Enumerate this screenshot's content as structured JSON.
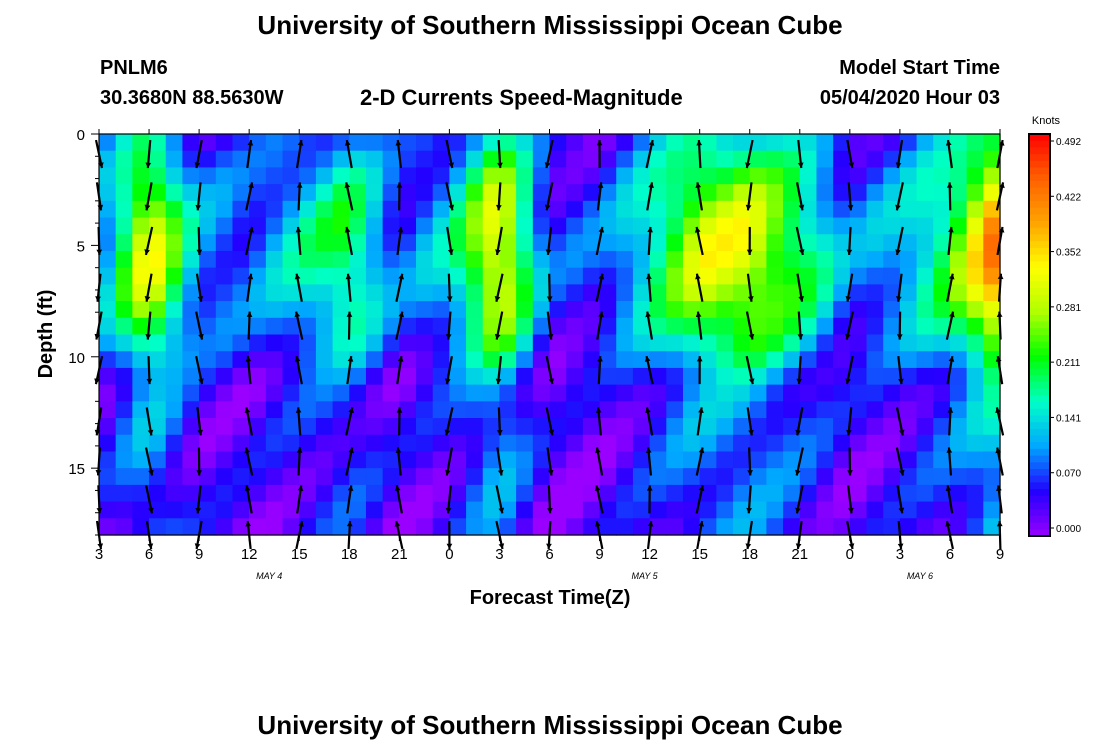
{
  "header": {
    "title": "University of Southern Mississippi Ocean Cube",
    "station": "PNLM6",
    "coords": "30.3680N 88.5630W",
    "subtitle": "2-D Currents Speed-Magnitude",
    "model_label": "Model Start Time",
    "model_time": "05/04/2020 Hour 03"
  },
  "footer": {
    "title": "University of Southern Mississippi Ocean Cube"
  },
  "colors": {
    "palette": [
      "#9900ff",
      "#2200ff",
      "#00a6ff",
      "#00ffc8",
      "#00ff00",
      "#b0ff00",
      "#ffff00",
      "#ffa500",
      "#ff6000",
      "#ff0000"
    ],
    "arrow": "#000000"
  },
  "chart_data": {
    "type": "heatmap",
    "xlabel": "Forecast Time(Z)",
    "ylabel": "Depth (ft)",
    "x_tick_labels": [
      "3",
      "6",
      "9",
      "12",
      "15",
      "18",
      "21",
      "0",
      "3",
      "6",
      "9",
      "12",
      "15",
      "18",
      "21",
      "0",
      "3",
      "6",
      "9"
    ],
    "date_labels": [
      {
        "text": "MAY 4",
        "tick_index": 3.4
      },
      {
        "text": "MAY 5",
        "tick_index": 10.9
      },
      {
        "text": "MAY 6",
        "tick_index": 16.4
      }
    ],
    "y_ticks": [
      0,
      5,
      10,
      15
    ],
    "ylim": [
      0,
      18
    ],
    "y_inverted": true,
    "colorbar": {
      "title": "Knots",
      "ticks": [
        "0.492",
        "0.422",
        "0.352",
        "0.281",
        "0.211",
        "0.141",
        "0.070",
        "0.000"
      ],
      "range": [
        0,
        0.492
      ]
    },
    "depth_levels_ft": [
      0.9,
      2.8,
      4.8,
      6.9,
      8.6,
      10.6,
      12.9,
      14.7,
      16.4,
      18.0
    ],
    "speed_profile_knots": [
      0.09,
      0.31,
      0.1,
      0.08,
      0.14,
      0.2,
      0.07,
      0.13,
      0.32,
      0.06,
      0.07,
      0.16,
      0.28,
      0.29,
      0.2,
      0.08,
      0.12,
      0.2,
      0.4
    ],
    "summary": "Depth-time speed field of the 2-D currents at PNLM6 with direction arrows at each grid node"
  }
}
